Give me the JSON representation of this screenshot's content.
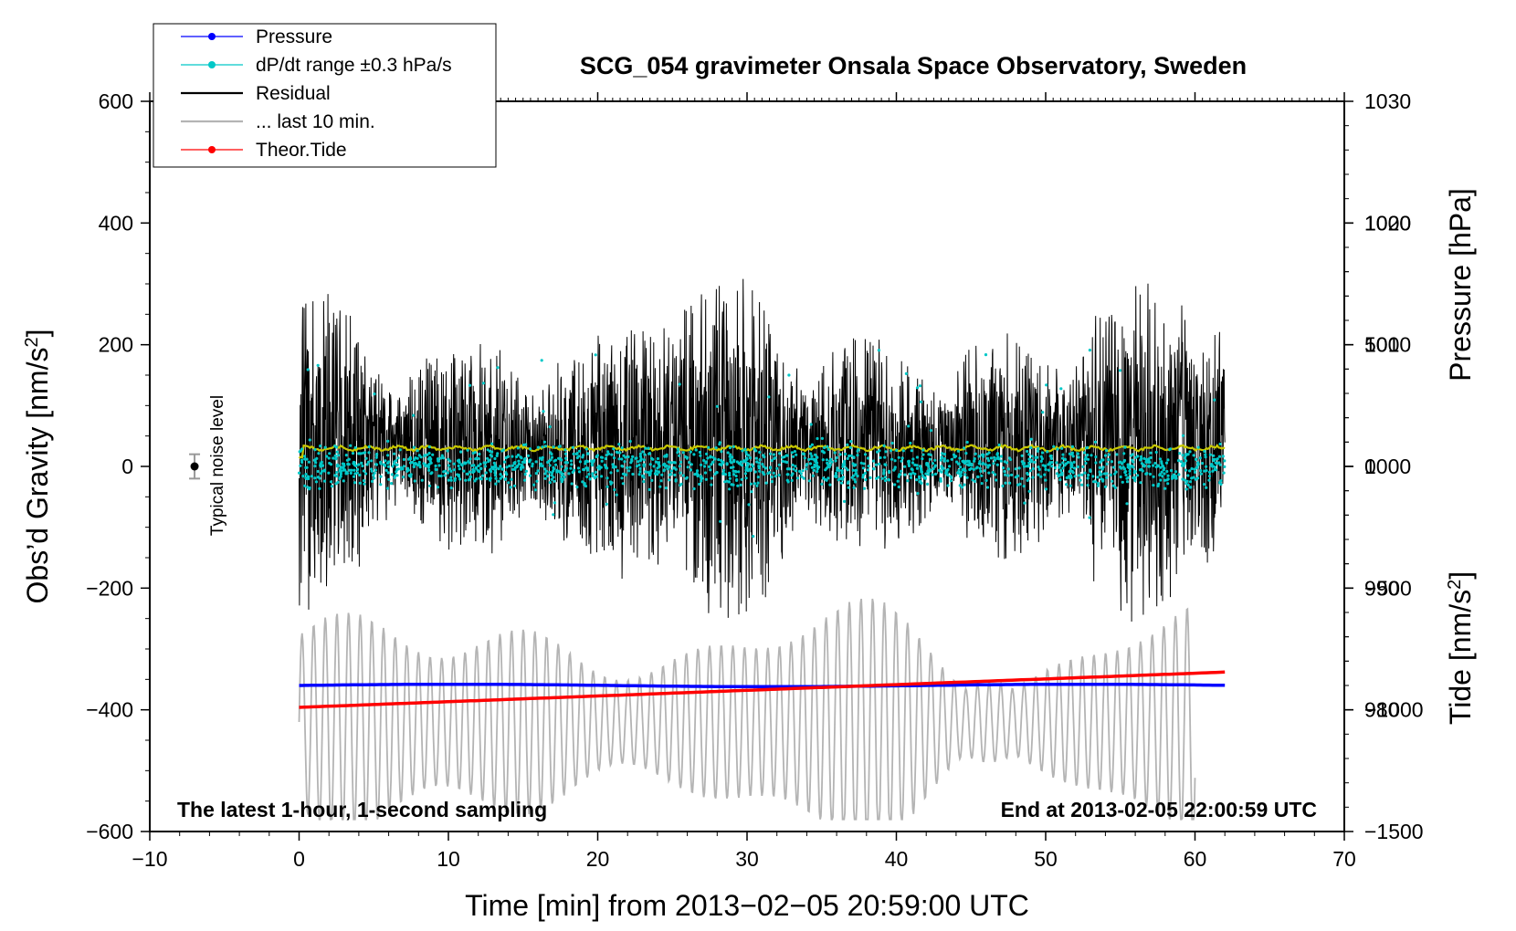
{
  "chart_data": {
    "type": "line",
    "title": "SCG_054 gravimeter Onsala Space Observatory, Sweden",
    "xlabel": "Time [min] from 2013−02−05 20:59:00 UTC",
    "ylabel_left": "Obs’d Gravity [nm/s",
    "ylabel_left_sup": "2",
    "ylabel_left_end": "]",
    "ylabel_right_pressure": "Pressure [hPa]",
    "ylabel_right_tide": "Tide [nm/s",
    "ylabel_right_tide_sup": "2",
    "ylabel_right_tide_end": "]",
    "xlim": [
      -10,
      70
    ],
    "ylim_left": [
      -600,
      600
    ],
    "pressure_range": [
      970,
      1030
    ],
    "tide_range": [
      -1500,
      1500
    ],
    "x_ticks": [
      -10,
      0,
      10,
      20,
      30,
      40,
      50,
      60,
      70
    ],
    "x_tick_labels": [
      "−10",
      "0",
      "10",
      "20",
      "30",
      "40",
      "50",
      "60",
      "70"
    ],
    "y_left_ticks": [
      -600,
      -400,
      -200,
      0,
      200,
      400,
      600
    ],
    "y_left_tick_labels": [
      "−600",
      "−400",
      "−200",
      "0",
      "200",
      "400",
      "600"
    ],
    "pressure_ticks": [
      980,
      990,
      1000,
      1010,
      1020,
      1030
    ],
    "pressure_tick_labels": [
      "980",
      "990",
      "1000",
      "1010",
      "1020",
      "1030"
    ],
    "tide_ticks": [
      -1500,
      -1000,
      -500,
      0,
      500,
      1000
    ],
    "tide_tick_labels": [
      "−1500",
      "−1000",
      "−500",
      "0",
      "500",
      "1000"
    ],
    "legend": [
      {
        "label": "Pressure",
        "color": "#0000ff",
        "marker": true
      },
      {
        "label": "dP/dt range ±0.3 hPa/s",
        "color": "#00c8c8",
        "marker": true
      },
      {
        "label": "Residual",
        "color": "#000000",
        "marker": false
      },
      {
        "label": "... last 10 min.",
        "color": "#b4b4b4",
        "marker": false
      },
      {
        "label": "Theor.Tide",
        "color": "#ff0000",
        "marker": true
      }
    ],
    "annotations": {
      "left": "The latest 1-hour, 1-second sampling",
      "right": "End at 2013-02-05 22:00:59 UTC",
      "noise": "Typical noise level"
    },
    "noise_bar": {
      "x": -7,
      "y": 0,
      "half_range": 20
    },
    "series": [
      {
        "name": "Pressure",
        "color": "#0000ff",
        "axis": "pressure",
        "x_range": [
          0,
          62
        ],
        "start": 982.0,
        "end": 982.0,
        "kind": "line"
      },
      {
        "name": "dP/dt range ±0.3 hPa/s",
        "color": "#00c8c8",
        "axis": "pressure",
        "x_range": [
          0,
          62
        ],
        "center": 1000,
        "spread": 2.5,
        "kind": "scatter"
      },
      {
        "name": "Residual",
        "color": "#000000",
        "axis": "gravity",
        "x_range": [
          0,
          62
        ],
        "center": 30,
        "typical_amplitude": 150,
        "max": 315,
        "min": -255,
        "kind": "noise-line"
      },
      {
        "name": "Smoothed residual",
        "color": "#c8c800",
        "axis": "gravity",
        "x_range": [
          0,
          62
        ],
        "value": 30,
        "kind": "line"
      },
      {
        "name": "... last 10 min.",
        "color": "#b4b4b4",
        "axis": "gravity",
        "x_range": [
          0,
          60
        ],
        "center": -420,
        "typical_amplitude": 90,
        "max": -160,
        "min": -580,
        "kind": "oscillation"
      },
      {
        "name": "Theor.Tide",
        "color": "#ff0000",
        "axis": "tide",
        "x_range": [
          0,
          62
        ],
        "start": -990,
        "end": -845,
        "kind": "line"
      }
    ]
  }
}
